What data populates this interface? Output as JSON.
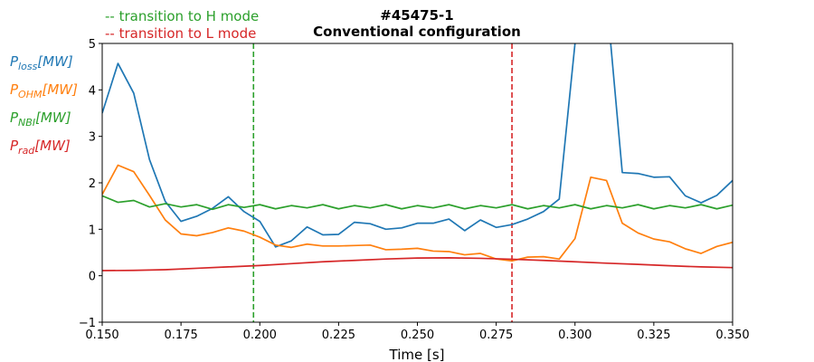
{
  "chart_data": {
    "type": "line",
    "title": "#45475-1",
    "subtitle": "Conventional configuration",
    "xlabel": "Time [s]",
    "ylabel": "",
    "xlim": [
      0.15,
      0.35
    ],
    "ylim": [
      -1,
      5
    ],
    "grid": false,
    "legend_placement": "left, outside plot",
    "x_ticks": [
      0.15,
      0.175,
      0.2,
      0.225,
      0.25,
      0.275,
      0.3,
      0.325,
      0.35
    ],
    "x_tick_labels": [
      "0.150",
      "0.175",
      "0.200",
      "0.225",
      "0.250",
      "0.275",
      "0.300",
      "0.325",
      "0.350"
    ],
    "y_ticks": [
      -1,
      0,
      1,
      2,
      3,
      4,
      5
    ],
    "y_tick_labels": [
      "−1",
      "0",
      "1",
      "2",
      "3",
      "4",
      "5"
    ],
    "annotations": [
      {
        "text": "-- transition to H mode",
        "color": "#2ca02c"
      },
      {
        "text": "-- transition to L mode",
        "color": "#d62728"
      }
    ],
    "vlines": [
      {
        "x": 0.198,
        "color": "#2ca02c",
        "style": "dashed"
      },
      {
        "x": 0.28,
        "color": "#d62728",
        "style": "dashed"
      }
    ],
    "series": [
      {
        "name": "P_loss[MW]",
        "label_main": "P",
        "label_sub": "loss",
        "label_unit": "[MW]",
        "color": "#1f77b4",
        "x": [
          0.15,
          0.155,
          0.16,
          0.165,
          0.17,
          0.175,
          0.18,
          0.185,
          0.19,
          0.195,
          0.2,
          0.205,
          0.21,
          0.215,
          0.22,
          0.225,
          0.23,
          0.235,
          0.24,
          0.245,
          0.25,
          0.255,
          0.26,
          0.265,
          0.27,
          0.275,
          0.28,
          0.285,
          0.29,
          0.295,
          0.3,
          0.305,
          0.31,
          0.315,
          0.32,
          0.325,
          0.33,
          0.335,
          0.34,
          0.345,
          0.35
        ],
        "y": [
          3.5,
          4.57,
          3.93,
          2.5,
          1.6,
          1.17,
          1.28,
          1.45,
          1.7,
          1.38,
          1.17,
          0.62,
          0.75,
          1.05,
          0.88,
          0.89,
          1.15,
          1.12,
          1.0,
          1.03,
          1.13,
          1.13,
          1.22,
          0.97,
          1.2,
          1.04,
          1.1,
          1.22,
          1.38,
          1.65,
          5.0,
          6.0,
          6.0,
          2.22,
          2.2,
          2.12,
          2.13,
          1.72,
          1.57,
          1.73,
          2.05
        ]
      },
      {
        "name": "P_OHM[MW]",
        "label_main": "P",
        "label_sub": "OHM",
        "label_unit": "[MW]",
        "color": "#ff7f0e",
        "x": [
          0.15,
          0.155,
          0.16,
          0.165,
          0.17,
          0.175,
          0.18,
          0.185,
          0.19,
          0.195,
          0.2,
          0.205,
          0.21,
          0.215,
          0.22,
          0.225,
          0.23,
          0.235,
          0.24,
          0.245,
          0.25,
          0.255,
          0.26,
          0.265,
          0.27,
          0.275,
          0.28,
          0.285,
          0.29,
          0.295,
          0.3,
          0.305,
          0.31,
          0.315,
          0.32,
          0.325,
          0.33,
          0.335,
          0.34,
          0.345,
          0.35
        ],
        "y": [
          1.75,
          2.38,
          2.24,
          1.73,
          1.2,
          0.9,
          0.86,
          0.93,
          1.03,
          0.96,
          0.83,
          0.66,
          0.61,
          0.68,
          0.64,
          0.64,
          0.65,
          0.66,
          0.56,
          0.57,
          0.59,
          0.53,
          0.52,
          0.45,
          0.48,
          0.36,
          0.32,
          0.4,
          0.41,
          0.36,
          0.8,
          2.12,
          2.05,
          1.13,
          0.92,
          0.79,
          0.73,
          0.58,
          0.48,
          0.63,
          0.72
        ]
      },
      {
        "name": "P_NBI[MW]",
        "label_main": "P",
        "label_sub": "NBI",
        "label_unit": "[MW]",
        "color": "#2ca02c",
        "x": [
          0.15,
          0.155,
          0.16,
          0.165,
          0.17,
          0.175,
          0.18,
          0.185,
          0.19,
          0.195,
          0.2,
          0.205,
          0.21,
          0.215,
          0.22,
          0.225,
          0.23,
          0.235,
          0.24,
          0.245,
          0.25,
          0.255,
          0.26,
          0.265,
          0.27,
          0.275,
          0.28,
          0.285,
          0.29,
          0.295,
          0.3,
          0.305,
          0.31,
          0.315,
          0.32,
          0.325,
          0.33,
          0.335,
          0.34,
          0.345,
          0.35
        ],
        "y": [
          1.72,
          1.58,
          1.62,
          1.48,
          1.55,
          1.48,
          1.53,
          1.43,
          1.53,
          1.47,
          1.53,
          1.44,
          1.51,
          1.46,
          1.53,
          1.44,
          1.51,
          1.46,
          1.53,
          1.44,
          1.51,
          1.46,
          1.53,
          1.44,
          1.51,
          1.46,
          1.53,
          1.44,
          1.51,
          1.46,
          1.53,
          1.44,
          1.51,
          1.46,
          1.53,
          1.44,
          1.51,
          1.46,
          1.53,
          1.44,
          1.52
        ]
      },
      {
        "name": "P_rad[MW]",
        "label_main": "P",
        "label_sub": "rad",
        "label_unit": "[MW]",
        "color": "#d62728",
        "x": [
          0.15,
          0.16,
          0.17,
          0.18,
          0.19,
          0.2,
          0.21,
          0.22,
          0.23,
          0.24,
          0.25,
          0.26,
          0.27,
          0.28,
          0.29,
          0.3,
          0.31,
          0.32,
          0.33,
          0.34,
          0.35
        ],
        "y": [
          0.11,
          0.115,
          0.13,
          0.16,
          0.19,
          0.22,
          0.26,
          0.3,
          0.33,
          0.36,
          0.38,
          0.385,
          0.375,
          0.355,
          0.33,
          0.3,
          0.27,
          0.245,
          0.215,
          0.19,
          0.175
        ]
      }
    ]
  }
}
